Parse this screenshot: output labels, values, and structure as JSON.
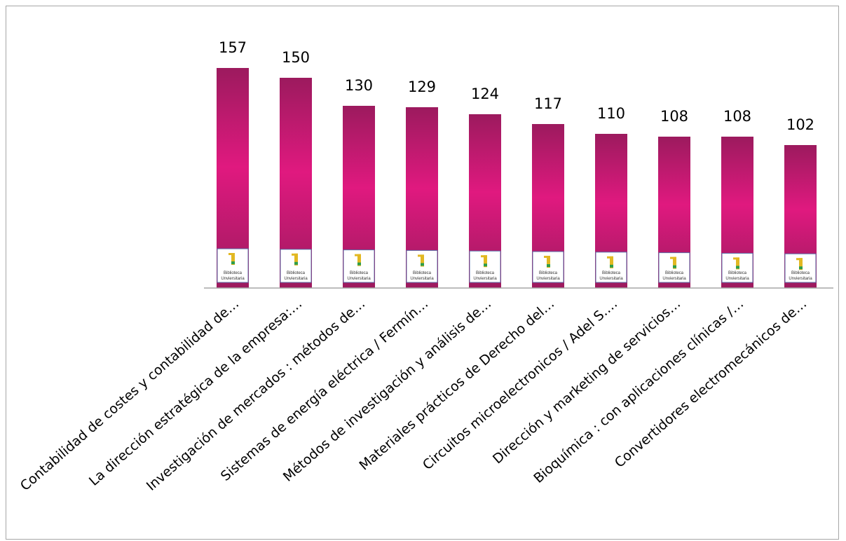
{
  "chart_data": {
    "type": "bar",
    "title": "",
    "xlabel": "",
    "ylabel": "",
    "ylim": [
      0,
      170
    ],
    "grid": false,
    "legend": "none",
    "categories": [
      "Contabilidad de costes y contabilidad de…",
      "La dirección estratégica de la empresa:…",
      "Investigación de mercados :  métodos de…",
      "Sistemas de energía eléctrica / Fermín…",
      "Métodos de investigación y análisis de…",
      "Materiales prácticos de Derecho del…",
      "Circuitos microelectronicos / Adel S.…",
      "Dirección y marketing de servicios…",
      "Bioquímica : con aplicaciones clínicas /…",
      "Convertidores electromecánicos de…"
    ],
    "values": [
      157,
      150,
      130,
      129,
      124,
      117,
      110,
      108,
      108,
      102
    ],
    "data_labels": [
      "157",
      "150",
      "130",
      "129",
      "124",
      "117",
      "110",
      "108",
      "108",
      "102"
    ],
    "bar_colors": {
      "edge": "#9c1a5e",
      "center": "#e0197f"
    },
    "axis_color": "#a6a6a6"
  },
  "logo": {
    "line1": "Biblioteca",
    "line2": "Unviersitaria"
  }
}
